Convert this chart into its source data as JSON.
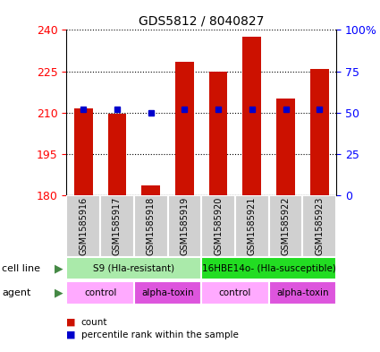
{
  "title": "GDS5812 / 8040827",
  "samples": [
    "GSM1585916",
    "GSM1585917",
    "GSM1585918",
    "GSM1585919",
    "GSM1585920",
    "GSM1585921",
    "GSM1585922",
    "GSM1585923"
  ],
  "counts": [
    211.5,
    209.5,
    183.5,
    228.5,
    225.0,
    237.5,
    215.0,
    226.0
  ],
  "percentiles": [
    52,
    52,
    50,
    52,
    52,
    52,
    52,
    52
  ],
  "ylim_left": [
    180,
    240
  ],
  "ylim_right": [
    0,
    100
  ],
  "yticks_left": [
    180,
    195,
    210,
    225,
    240
  ],
  "yticks_right": [
    0,
    25,
    50,
    75,
    100
  ],
  "ytick_labels_right": [
    "0",
    "25",
    "50",
    "75",
    "100%"
  ],
  "cell_lines": [
    {
      "label": "S9 (Hla-resistant)",
      "start": 0,
      "end": 4,
      "color": "#aaeaaa"
    },
    {
      "label": "16HBE14o- (Hla-susceptible)",
      "start": 4,
      "end": 8,
      "color": "#22dd22"
    }
  ],
  "agents": [
    {
      "label": "control",
      "start": 0,
      "end": 2,
      "color": "#ffaaff"
    },
    {
      "label": "alpha-toxin",
      "start": 2,
      "end": 4,
      "color": "#dd55dd"
    },
    {
      "label": "control",
      "start": 4,
      "end": 6,
      "color": "#ffaaff"
    },
    {
      "label": "alpha-toxin",
      "start": 6,
      "end": 8,
      "color": "#dd55dd"
    }
  ],
  "bar_color": "#cc1100",
  "dot_color": "#0000cc",
  "bar_base": 180,
  "sample_box_color": "#cccccc",
  "sample_box_edge": "#ffffff",
  "legend_count_color": "#cc1100",
  "legend_pct_color": "#0000cc",
  "right_ytick_labels": [
    "0",
    "25",
    "50",
    "75",
    "100%"
  ]
}
